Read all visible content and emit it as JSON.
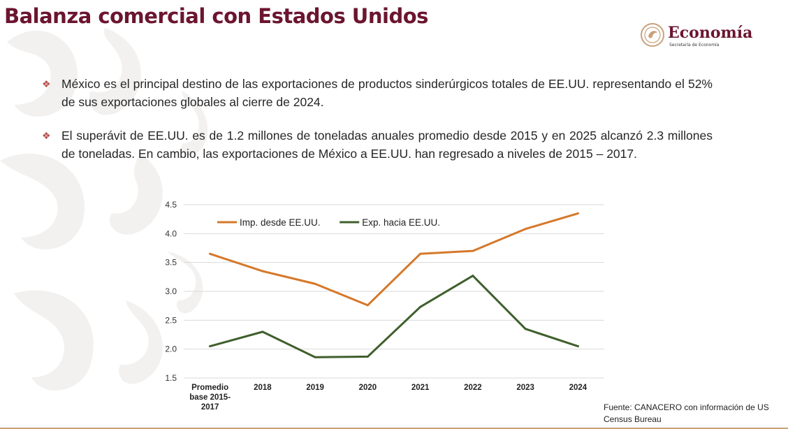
{
  "page": {
    "title": "Balanza comercial con Estados Unidos",
    "logo_text": "Economía",
    "logo_subtext": "Secretaría de Economía",
    "accent_color": "#6b1530"
  },
  "bullets": [
    {
      "icon": "diamond-bullet-icon",
      "text": "México es el principal destino de las exportaciones de productos sinderúrgicos totales de EE.UU. representando el 52% de sus exportaciones globales al cierre de 2024."
    },
    {
      "icon": "diamond-bullet-icon",
      "text": "El superávit de EE.UU. es de 1.2 millones de toneladas anuales promedio desde 2015 y en 2025 alcanzó 2.3 millones de toneladas. En cambio, las exportaciones de México a EE.UU. han regresado a niveles de 2015 – 2017."
    }
  ],
  "chart_data": {
    "type": "line",
    "categories": [
      [
        "Promedio",
        "base 2015-",
        "2017"
      ],
      [
        "2018"
      ],
      [
        "2019"
      ],
      [
        "2020"
      ],
      [
        "2021"
      ],
      [
        "2022"
      ],
      [
        "2023"
      ],
      [
        "2024"
      ]
    ],
    "ylim": [
      1.5,
      4.5
    ],
    "yticks": [
      "1.5",
      "2.0",
      "2.5",
      "3.0",
      "3.5",
      "4.0",
      "4.5"
    ],
    "grid": true,
    "legend_position": "top-left",
    "series": [
      {
        "name": "Imp. desde EE.UU.",
        "color": "#d5782a",
        "values": [
          3.65,
          3.35,
          3.13,
          2.76,
          3.65,
          3.7,
          4.08,
          4.35
        ]
      },
      {
        "name": "Exp. hacia EE.UU.",
        "color": "#3f5f2c",
        "values": [
          2.05,
          2.3,
          1.86,
          1.87,
          2.73,
          3.27,
          2.35,
          2.05
        ]
      }
    ]
  },
  "source": {
    "line1": "Fuente:  CANACERO con información de US",
    "line2": "Census Bureau"
  }
}
